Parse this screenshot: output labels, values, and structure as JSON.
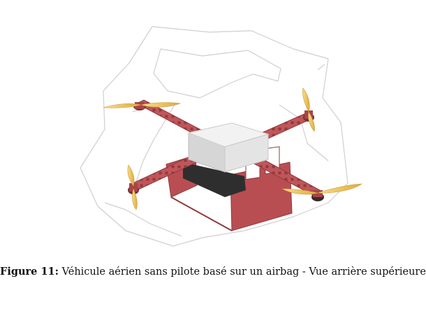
{
  "figure": {
    "label": "Figure 11:",
    "caption": " Véhicule aérien sans pilote basé sur un airbag - Vue arrière supérieure"
  },
  "colors": {
    "frame": "#c0565a",
    "frame_dark": "#8f3a3e",
    "propeller": "#f0c85a",
    "body_top": "#f2f2f2",
    "body_side": "#d6d6d6",
    "battery": "#2e2e2e",
    "airbag_outline": "#cfcfcf"
  }
}
